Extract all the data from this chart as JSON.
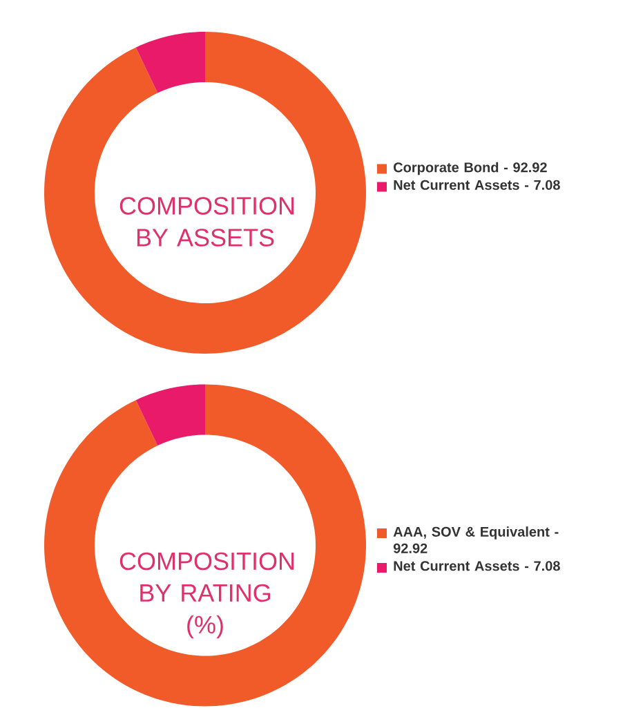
{
  "chart_data": [
    {
      "type": "donut",
      "title": "COMPOSITION BY ASSETS",
      "categories": [
        "Corporate Bond - 92.92",
        "Net Current Assets - 7.08"
      ],
      "values": [
        92.92,
        7.08
      ],
      "colors": [
        "#f15a29",
        "#ea1a6a"
      ],
      "legend": "right"
    },
    {
      "type": "donut",
      "title": "COMPOSITION BY RATING (%)",
      "categories": [
        "AAA, SOV & Equivalent - 92.92",
        "Net Current Assets - 7.08"
      ],
      "values": [
        92.92,
        7.08
      ],
      "colors": [
        "#f15a29",
        "#ea1a6a"
      ],
      "legend": "right"
    }
  ]
}
